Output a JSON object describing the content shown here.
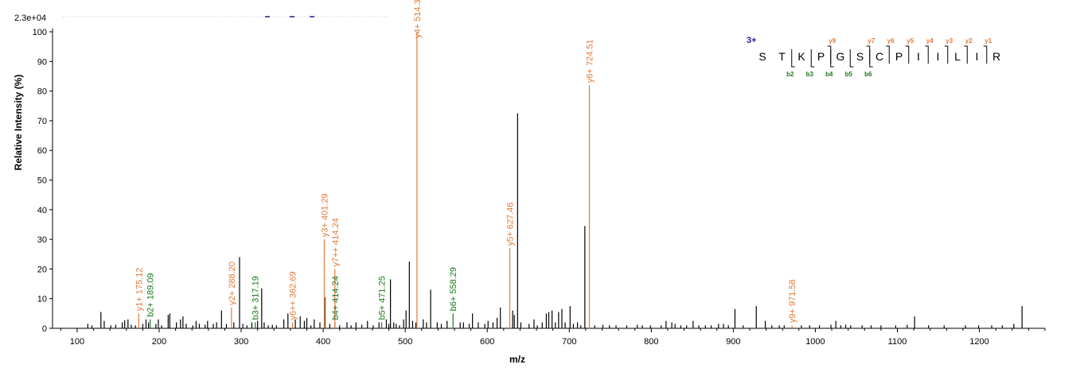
{
  "chart_data": {
    "type": "bar",
    "subtype": "mass-spectrum",
    "max_intensity_label": "2.3e+04",
    "xlabel": "m/z",
    "ylabel": "Relative   Intensity (%)",
    "xlim": [
      70,
      1280
    ],
    "ylim": [
      0,
      100
    ],
    "x_ticks": [
      100,
      200,
      300,
      400,
      500,
      600,
      700,
      800,
      900,
      1000,
      1100,
      1200
    ],
    "y_ticks": [
      0,
      10,
      20,
      30,
      40,
      50,
      60,
      70,
      80,
      90,
      100
    ],
    "colors": {
      "y_ion": "#e07b39",
      "b_ion": "#1a7a1a",
      "unassigned": "#000000",
      "charge": "#1a1aa0",
      "top_marks": "#1a1aa0"
    },
    "annotated_peaks": [
      {
        "mz": 175.12,
        "intensity": 5,
        "label": "y1+ 175.12",
        "ion": "y"
      },
      {
        "mz": 189.09,
        "intensity": 3,
        "label": "b2+ 189.09",
        "ion": "b"
      },
      {
        "mz": 288.2,
        "intensity": 7,
        "label": "y2+ 288.20",
        "ion": "y"
      },
      {
        "mz": 317.19,
        "intensity": 2,
        "label": "b3+ 317.19",
        "ion": "b"
      },
      {
        "mz": 362.69,
        "intensity": 2,
        "label": "y6++ 362.69",
        "ion": "y"
      },
      {
        "mz": 401.29,
        "intensity": 30,
        "label": "y3+ 401.29",
        "ion": "y"
      },
      {
        "mz": 414.24,
        "intensity": 2,
        "label": "b4+ 414.24",
        "ion": "b"
      },
      {
        "mz": 414.24,
        "intensity": 20,
        "label": "y7++ 414.24",
        "ion": "y"
      },
      {
        "mz": 471.25,
        "intensity": 2,
        "label": "b5+ 471.25",
        "ion": "b"
      },
      {
        "mz": 514.3,
        "intensity": 100,
        "label": "y4+ 514.3",
        "ion": "y"
      },
      {
        "mz": 558.29,
        "intensity": 5,
        "label": "b6+ 558.29",
        "ion": "b"
      },
      {
        "mz": 627.46,
        "intensity": 27,
        "label": "y5+ 627.46",
        "ion": "y"
      },
      {
        "mz": 724.51,
        "intensity": 82,
        "label": "y6+ 724.51",
        "ion": "y"
      },
      {
        "mz": 971.58,
        "intensity": 1,
        "label": "y9+ 971.58",
        "ion": "y"
      }
    ],
    "unassigned_peaks": [
      [
        113,
        1.5
      ],
      [
        118,
        1
      ],
      [
        129,
        5.5
      ],
      [
        133,
        2.5
      ],
      [
        141,
        1
      ],
      [
        147,
        1.2
      ],
      [
        155,
        2
      ],
      [
        158,
        2.7
      ],
      [
        162,
        3
      ],
      [
        166,
        1.2
      ],
      [
        171,
        1
      ],
      [
        180,
        1.5
      ],
      [
        184,
        3
      ],
      [
        187,
        2
      ],
      [
        196,
        1.5
      ],
      [
        199,
        3
      ],
      [
        203,
        1
      ],
      [
        211,
        4.5
      ],
      [
        213,
        5
      ],
      [
        221,
        2
      ],
      [
        226,
        3
      ],
      [
        229,
        4
      ],
      [
        233,
        1.5
      ],
      [
        241,
        1
      ],
      [
        245,
        2.5
      ],
      [
        249,
        1.5
      ],
      [
        256,
        1.2
      ],
      [
        259,
        2.5
      ],
      [
        266,
        1.5
      ],
      [
        270,
        2
      ],
      [
        276,
        6
      ],
      [
        282,
        1.5
      ],
      [
        291,
        2
      ],
      [
        298,
        24
      ],
      [
        302,
        1.5
      ],
      [
        307,
        1
      ],
      [
        313,
        2
      ],
      [
        320,
        2.5
      ],
      [
        325,
        13.5
      ],
      [
        328,
        2
      ],
      [
        333,
        1
      ],
      [
        338,
        1.2
      ],
      [
        343,
        1
      ],
      [
        352,
        3
      ],
      [
        357,
        5
      ],
      [
        366,
        3
      ],
      [
        372,
        4
      ],
      [
        377,
        2.5
      ],
      [
        380,
        3.5
      ],
      [
        385,
        1
      ],
      [
        389,
        3
      ],
      [
        396,
        2
      ],
      [
        402,
        10.5
      ],
      [
        408,
        1.5
      ],
      [
        420,
        1
      ],
      [
        429,
        2
      ],
      [
        434,
        1
      ],
      [
        440,
        2
      ],
      [
        447,
        1.2
      ],
      [
        454,
        2.5
      ],
      [
        461,
        1
      ],
      [
        468,
        2
      ],
      [
        477,
        3
      ],
      [
        480,
        1.5
      ],
      [
        482,
        16.5
      ],
      [
        486,
        2
      ],
      [
        489,
        1.5
      ],
      [
        493,
        1
      ],
      [
        498,
        3
      ],
      [
        501,
        6
      ],
      [
        505,
        22.5
      ],
      [
        509,
        2.5
      ],
      [
        513,
        2
      ],
      [
        522,
        3
      ],
      [
        526,
        2
      ],
      [
        531,
        13
      ],
      [
        539,
        2
      ],
      [
        544,
        1.5
      ],
      [
        551,
        2.5
      ],
      [
        567,
        2
      ],
      [
        571,
        2
      ],
      [
        578,
        1.5
      ],
      [
        582,
        5
      ],
      [
        589,
        2
      ],
      [
        597,
        1.5
      ],
      [
        601,
        2.5
      ],
      [
        607,
        2
      ],
      [
        612,
        3.5
      ],
      [
        616,
        7
      ],
      [
        631,
        6
      ],
      [
        633,
        4.5
      ],
      [
        637,
        72.5
      ],
      [
        641,
        2
      ],
      [
        651,
        1.5
      ],
      [
        657,
        3
      ],
      [
        661,
        1
      ],
      [
        667,
        2
      ],
      [
        672,
        5
      ],
      [
        675,
        5.5
      ],
      [
        679,
        6
      ],
      [
        683,
        2
      ],
      [
        687,
        5.5
      ],
      [
        691,
        6.5
      ],
      [
        695,
        2
      ],
      [
        701,
        7.5
      ],
      [
        705,
        1.5
      ],
      [
        710,
        2
      ],
      [
        714,
        1
      ],
      [
        719,
        34.5
      ],
      [
        731,
        1
      ],
      [
        741,
        1.2
      ],
      [
        749,
        1
      ],
      [
        757,
        1
      ],
      [
        770,
        1
      ],
      [
        783,
        1.2
      ],
      [
        789,
        1
      ],
      [
        799,
        1
      ],
      [
        812,
        1
      ],
      [
        818,
        2.5
      ],
      [
        825,
        2
      ],
      [
        829,
        1.5
      ],
      [
        836,
        1
      ],
      [
        843,
        1
      ],
      [
        851,
        2.5
      ],
      [
        858,
        1
      ],
      [
        866,
        1
      ],
      [
        873,
        1
      ],
      [
        882,
        1.5
      ],
      [
        888,
        1.5
      ],
      [
        894,
        1
      ],
      [
        902,
        6.5
      ],
      [
        912,
        1
      ],
      [
        928,
        7.5
      ],
      [
        939,
        2.5
      ],
      [
        947,
        1
      ],
      [
        956,
        1
      ],
      [
        962,
        1
      ],
      [
        983,
        1
      ],
      [
        993,
        1
      ],
      [
        1005,
        1
      ],
      [
        1019,
        1.2
      ],
      [
        1025,
        2.5
      ],
      [
        1031,
        1
      ],
      [
        1037,
        1.2
      ],
      [
        1043,
        1
      ],
      [
        1057,
        1
      ],
      [
        1068,
        1
      ],
      [
        1080,
        1
      ],
      [
        1098,
        1
      ],
      [
        1112,
        1.2
      ],
      [
        1121,
        4
      ],
      [
        1138,
        1
      ],
      [
        1157,
        1
      ],
      [
        1183,
        1
      ],
      [
        1199,
        1
      ],
      [
        1215,
        1
      ],
      [
        1228,
        1
      ],
      [
        1242,
        1.5
      ],
      [
        1252,
        7.5
      ]
    ],
    "peptide": {
      "charge": "3+",
      "residues": [
        "S",
        "T",
        "K",
        "P",
        "G",
        "S",
        "C",
        "P",
        "I",
        "I",
        "L",
        "I",
        "R"
      ],
      "y_ions": [
        {
          "after": 4,
          "label": "y9"
        },
        {
          "after": 6,
          "label": "y7"
        },
        {
          "after": 7,
          "label": "y6"
        },
        {
          "after": 8,
          "label": "y5"
        },
        {
          "after": 9,
          "label": "y4"
        },
        {
          "after": 10,
          "label": "y3"
        },
        {
          "after": 11,
          "label": "y2"
        },
        {
          "after": 12,
          "label": "y1"
        }
      ],
      "b_ions": [
        {
          "after": 2,
          "label": "b2"
        },
        {
          "after": 3,
          "label": "b3"
        },
        {
          "after": 4,
          "label": "b4"
        },
        {
          "after": 5,
          "label": "b5"
        },
        {
          "after": 6,
          "label": "b6"
        }
      ]
    }
  }
}
